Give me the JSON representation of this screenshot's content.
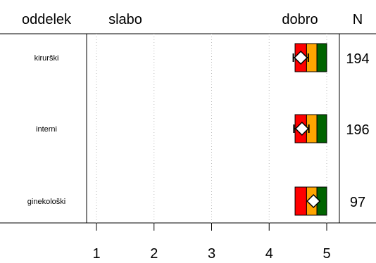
{
  "header": {
    "col_label": "oddelek",
    "low_label": "slabo",
    "high_label": "dobro",
    "n_label": "N"
  },
  "colors": {
    "red": "#ff0000",
    "orange": "#ffa500",
    "green": "#006400",
    "grid": "#bbbbbb"
  },
  "chart_data": {
    "type": "bar",
    "categories": [
      "kirurški",
      "interni",
      "ginekološki"
    ],
    "xlim": [
      1,
      5
    ],
    "xticks": [
      "1",
      "2",
      "3",
      "4",
      "5"
    ],
    "grid": true,
    "band_cutoffs": [
      4.45,
      4.65,
      4.83,
      5.0
    ],
    "series": [
      {
        "name": "kirurški",
        "mean": 4.55,
        "ci": [
          4.42,
          4.68
        ],
        "n": "194"
      },
      {
        "name": "interni",
        "mean": 4.57,
        "ci": [
          4.43,
          4.69
        ],
        "n": "196"
      },
      {
        "name": "ginekološki",
        "mean": 4.77,
        "ci": [
          4.77,
          4.77
        ],
        "n": "97"
      }
    ]
  }
}
